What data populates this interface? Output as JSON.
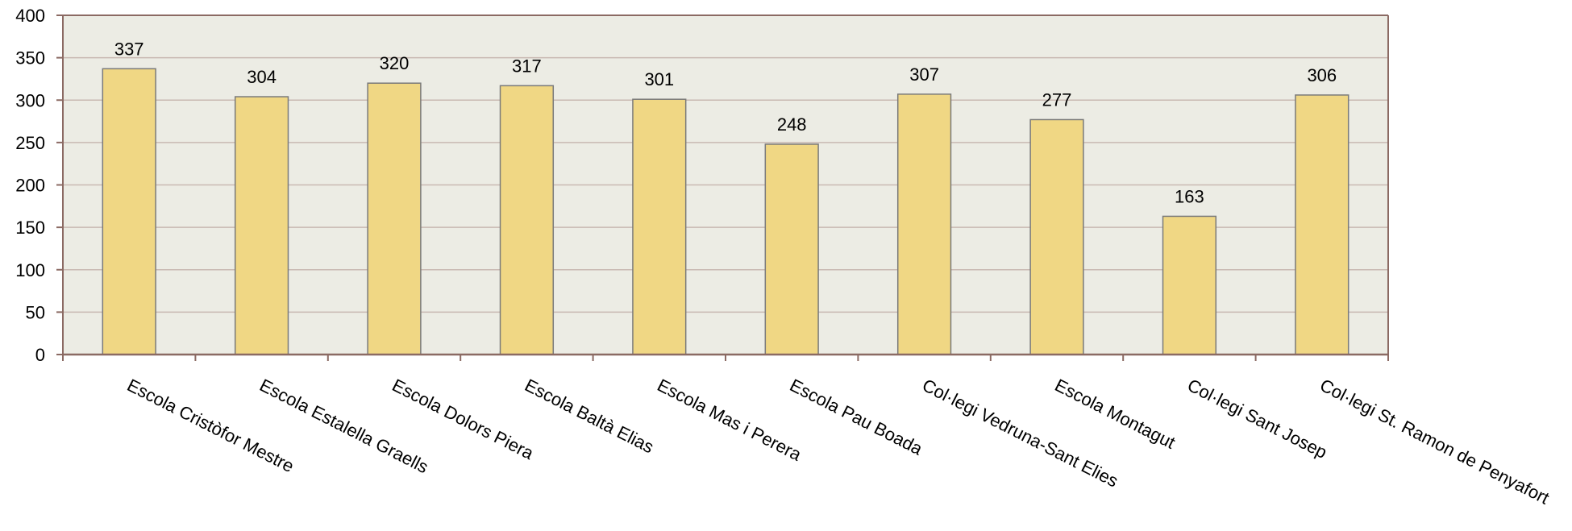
{
  "chart_data": {
    "type": "bar",
    "categories": [
      "Escola Cristòfor Mestre",
      "Escola Estalella Graells",
      "Escola Dolors Piera",
      "Escola  Baltà Elias",
      "Escola Mas i Perera",
      "Escola Pau Boada",
      "Col·legi Vedruna-Sant Elies",
      "Escola Montagut",
      "Col·legi Sant Josep",
      "Col·legi St. Ramon de Penyafort"
    ],
    "values": [
      337,
      304,
      320,
      317,
      301,
      248,
      307,
      277,
      163,
      306
    ],
    "title": "",
    "xlabel": "",
    "ylabel": "",
    "ylim": [
      0,
      400
    ],
    "yticks": [
      0,
      50,
      100,
      150,
      200,
      250,
      300,
      350,
      400
    ],
    "grid": true,
    "legend": "none",
    "colors": {
      "bar_fill": "#f0d784",
      "bar_stroke": "#7a7a7a",
      "plot_background": "#ecece4",
      "axis": "#8b6a63",
      "grid": "#c9b9b2"
    }
  }
}
